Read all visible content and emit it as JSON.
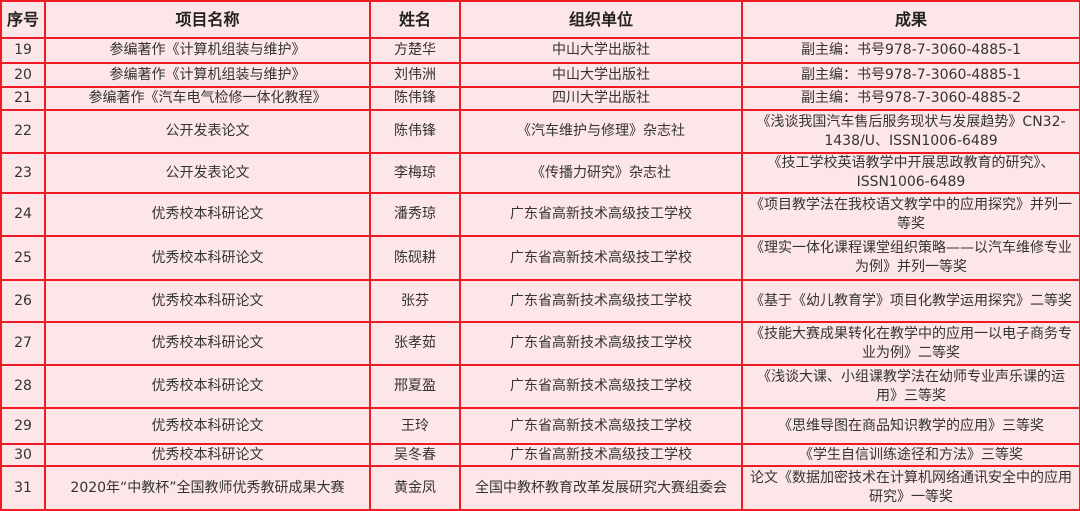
{
  "headers": [
    "序号",
    "项目名称",
    "姓名",
    "组织单位",
    "成果"
  ],
  "rows": [
    [
      "19",
      "参编著作《计算机组装与维护》",
      "方楚华",
      "中山大学出版社",
      "副主编：书号978-7-3060-4885-1"
    ],
    [
      "20",
      "参编著作《计算机组装与维护》",
      "刘伟洲",
      "中山大学出版社",
      "副主编：书号978-7-3060-4885-1"
    ],
    [
      "21",
      "参编著作《汽车电气检修一体化教程》",
      "陈伟锋",
      "四川大学出版社",
      "副主编：书号978-7-3060-4885-2"
    ],
    [
      "22",
      "公开发表论文",
      "陈伟锋",
      "《汽车维护与修理》杂志社",
      "《浅谈我国汽车售后服务现状与发展趋势》CN32-1438/U、ISSN1006-6489"
    ],
    [
      "23",
      "公开发表论文",
      "李梅琼",
      "《传播力研究》杂志社",
      "《技工学校英语教学中开展思政教育的研究》、ISSN1006-6489"
    ],
    [
      "24",
      "优秀校本科研论文",
      "潘秀琼",
      "广东省高新技术高级技工学校",
      "《项目教学法在我校语文教学中的应用探究》并列一等奖"
    ],
    [
      "25",
      "优秀校本科研论文",
      "陈砚耕",
      "广东省高新技术高级技工学校",
      "《理实一体化课程课堂组织策略——以汽车维修专业为例》并列一等奖"
    ],
    [
      "26",
      "优秀校本科研论文",
      "张芬",
      "广东省高新技术高级技工学校",
      "《基于《幼儿教育学》项目化教学运用探究》二等奖"
    ],
    [
      "27",
      "优秀校本科研论文",
      "张孝茹",
      "广东省高新技术高级技工学校",
      "《技能大赛成果转化在教学中的应用一以电子商务专业为例》二等奖"
    ],
    [
      "28",
      "优秀校本科研论文",
      "邢夏盈",
      "广东省高新技术高级技工学校",
      "《浅谈大课、小组课教学法在幼师专业声乐课的运用》三等奖"
    ],
    [
      "29",
      "优秀校本科研论文",
      "王玲",
      "广东省高新技术高级技工学校",
      "《思维导图在商品知识教学的应用》三等奖"
    ],
    [
      "30",
      "优秀校本科研论文",
      "吴冬春",
      "广东省高新技术高级技工学校",
      "《学生自信训练途径和方法》三等奖"
    ],
    [
      "31",
      "2020年“中教杯”全国教师优秀教研成果大赛",
      "黄金凤",
      "全国中教杯教育改革发展研究大赛组委会",
      "论文《数据加密技术在计算机网络通讯安全中的应用研究》一等奖"
    ]
  ],
  "colors": {
    "border": "#f01c24",
    "background": "#fde6e8"
  }
}
